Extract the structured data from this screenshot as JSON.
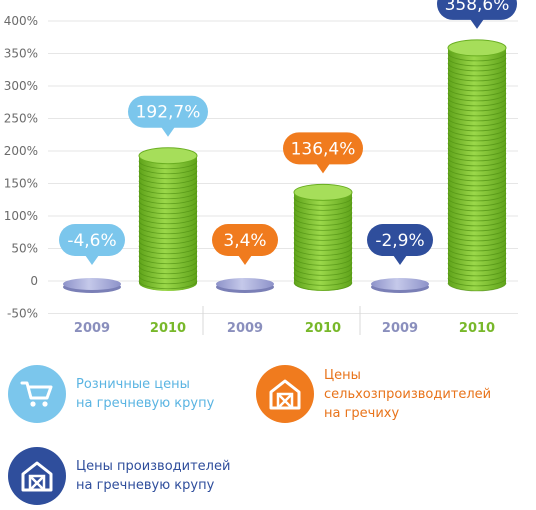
{
  "chart_data": {
    "type": "bar",
    "ylim": [
      -50,
      400
    ],
    "yticks": [
      "400%",
      "350%",
      "300%",
      "250%",
      "200%",
      "150%",
      "100%",
      "50%",
      "0",
      "-50%"
    ],
    "ytick_values": [
      400,
      350,
      300,
      250,
      200,
      150,
      100,
      50,
      0,
      -50
    ],
    "groups": [
      {
        "series": "Розничные цены на гречневую крупу",
        "bars": [
          {
            "x": "2009",
            "value": -4.6,
            "label": "-4,6%"
          },
          {
            "x": "2010",
            "value": 192.7,
            "label": "192,7%"
          }
        ]
      },
      {
        "series": "Цены сельхозпроизводителей на гречиху",
        "bars": [
          {
            "x": "2009",
            "value": 3.4,
            "label": "3,4%"
          },
          {
            "x": "2010",
            "value": 136.4,
            "label": "136,4%"
          }
        ]
      },
      {
        "series": "Цены производителей на гречневую крупу",
        "bars": [
          {
            "x": "2009",
            "value": -2.9,
            "label": "-2,9%"
          },
          {
            "x": "2010",
            "value": 358.6,
            "label": "358,6%"
          }
        ]
      }
    ],
    "grid": true
  },
  "colors": {
    "light_blue": "#7bc6ec",
    "orange": "#f07b1e",
    "dark_blue": "#2f4e9c",
    "green": "#7dc02b",
    "year_2009": "#8a8fbd",
    "year_2010": "#78b82a"
  },
  "legend": [
    {
      "label": "Розничные цены\nна гречневую крупу",
      "icon": "cart-icon",
      "color": "#7bc6ec"
    },
    {
      "label": "Цены\nсельхозпроизводителей\nна гречиху",
      "icon": "barn-icon",
      "color": "#f07b1e"
    },
    {
      "label": "Цены производителей\nна гречневую крупу",
      "icon": "barn-icon",
      "color": "#2f4e9c"
    }
  ]
}
